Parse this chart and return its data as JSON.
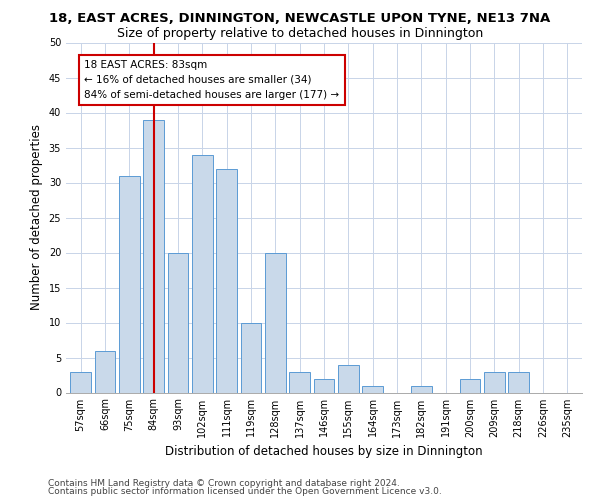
{
  "title": "18, EAST ACRES, DINNINGTON, NEWCASTLE UPON TYNE, NE13 7NA",
  "subtitle": "Size of property relative to detached houses in Dinnington",
  "xlabel": "Distribution of detached houses by size in Dinnington",
  "ylabel": "Number of detached properties",
  "categories": [
    "57sqm",
    "66sqm",
    "75sqm",
    "84sqm",
    "93sqm",
    "102sqm",
    "111sqm",
    "119sqm",
    "128sqm",
    "137sqm",
    "146sqm",
    "155sqm",
    "164sqm",
    "173sqm",
    "182sqm",
    "191sqm",
    "200sqm",
    "209sqm",
    "218sqm",
    "226sqm",
    "235sqm"
  ],
  "values": [
    3,
    6,
    31,
    39,
    20,
    34,
    32,
    10,
    20,
    3,
    2,
    4,
    1,
    0,
    1,
    0,
    2,
    3,
    3,
    0,
    0
  ],
  "bar_color": "#c9d9ea",
  "bar_edge_color": "#5b9bd5",
  "highlight_bar_index": 3,
  "highlight_line_color": "#cc0000",
  "ylim": [
    0,
    50
  ],
  "yticks": [
    0,
    5,
    10,
    15,
    20,
    25,
    30,
    35,
    40,
    45,
    50
  ],
  "annotation_line1": "18 EAST ACRES: 83sqm",
  "annotation_line2": "← 16% of detached houses are smaller (34)",
  "annotation_line3": "84% of semi-detached houses are larger (177) →",
  "annotation_box_color": "#ffffff",
  "annotation_box_edge": "#cc0000",
  "footer1": "Contains HM Land Registry data © Crown copyright and database right 2024.",
  "footer2": "Contains public sector information licensed under the Open Government Licence v3.0.",
  "bg_color": "#ffffff",
  "grid_color": "#c8d4e8",
  "title_fontsize": 9.5,
  "subtitle_fontsize": 9,
  "axis_label_fontsize": 8.5,
  "tick_fontsize": 7,
  "annotation_fontsize": 7.5,
  "footer_fontsize": 6.5
}
